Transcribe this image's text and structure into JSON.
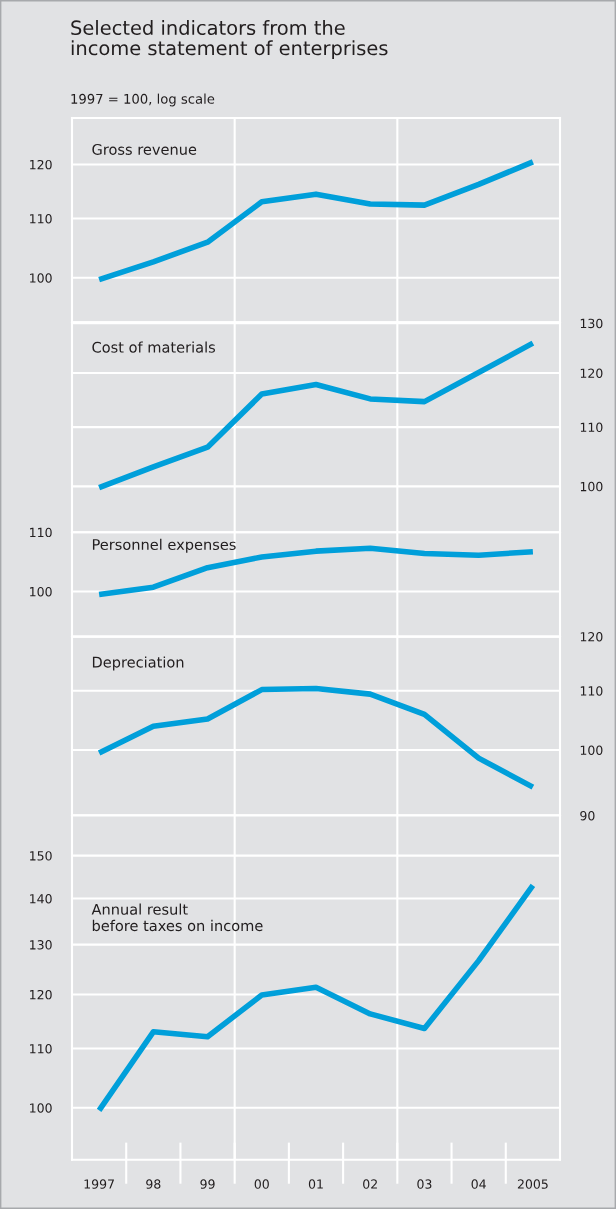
{
  "chart_data": [
    {
      "type": "line",
      "title": "Selected indicators from the\nincome statement of enterprises",
      "subtitle": "1997 = 100, log scale",
      "categories": [
        "1997",
        "98",
        "99",
        "00",
        "01",
        "02",
        "03",
        "04",
        "2005"
      ],
      "log": true,
      "grid": true,
      "tick_labels": "y",
      "ylim": [
        93.1,
        129.3
      ],
      "yticks": [
        100,
        110,
        120
      ],
      "series": [
        {
          "name": "Gross revenue",
          "color": "#009fda",
          "values": [
            99.7,
            102.6,
            105.9,
            113.0,
            114.4,
            112.6,
            112.4,
            116.2,
            120.5
          ]
        }
      ]
    },
    {
      "type": "line",
      "categories": [
        "1997",
        "98",
        "99",
        "00",
        "01",
        "02",
        "03",
        "04",
        "2005"
      ],
      "log": "y2",
      "grid": true,
      "tick_labels": "y",
      "y2lim": [
        92.9,
        130.2
      ],
      "y2ticks": [
        100,
        110,
        120,
        130
      ],
      "series": [
        {
          "name": "Cost of materials",
          "color": "#009fda",
          "axis": "y2",
          "values": [
            99.8,
            103.2,
            106.5,
            116.0,
            117.8,
            115.1,
            114.6,
            120.1,
            125.9
          ]
        }
      ]
    },
    {
      "type": "line",
      "categories": [
        "1997",
        "98",
        "99",
        "00",
        "01",
        "02",
        "03",
        "04",
        "2005"
      ],
      "log": true,
      "grid": true,
      "tick_labels": "y",
      "ylim": [
        93.0,
        110.0
      ],
      "yticks": [
        100,
        110
      ],
      "series": [
        {
          "name": "Personnel expenses",
          "color": "#009fda",
          "values": [
            99.5,
            100.7,
            103.9,
            105.7,
            106.7,
            107.2,
            106.3,
            106.0,
            106.6
          ]
        }
      ]
    },
    {
      "type": "line",
      "categories": [
        "1997",
        "98",
        "99",
        "00",
        "01",
        "02",
        "03",
        "04",
        "2005"
      ],
      "log": "y2",
      "grid": true,
      "tick_labels": "y",
      "y2lim": [
        90,
        120
      ],
      "y2ticks": [
        90,
        100,
        110,
        120
      ],
      "series": [
        {
          "name": "Depreciation",
          "color": "#009fda",
          "axis": "y2",
          "values": [
            99.5,
            103.9,
            105.1,
            110.2,
            110.4,
            109.4,
            105.9,
            98.7,
            94.2
          ]
        }
      ]
    },
    {
      "type": "line",
      "categories": [
        "1997",
        "98",
        "99",
        "00",
        "01",
        "02",
        "03",
        "04",
        "2005"
      ],
      "log": true,
      "grid": true,
      "ylim": [
        92,
        160
      ],
      "yticks": [
        100,
        110,
        120,
        130,
        140,
        150
      ],
      "series": [
        {
          "name": "Annual result\nbefore taxes on income",
          "color": "#009fda",
          "values": [
            99.6,
            113.0,
            112.1,
            119.9,
            121.4,
            116.3,
            113.6,
            126.7,
            143.0
          ]
        }
      ]
    }
  ]
}
